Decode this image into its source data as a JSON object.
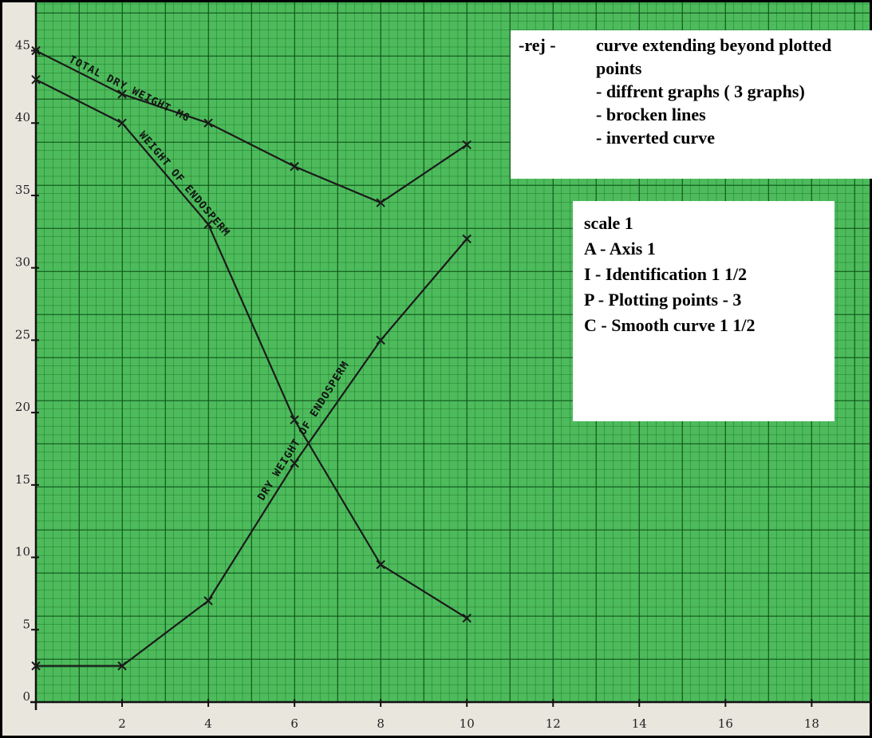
{
  "chart_data": {
    "type": "line",
    "x": [
      0,
      2,
      4,
      6,
      8,
      10
    ],
    "series": [
      {
        "name": "TOTAL DRY WEIGHT MG",
        "color": "#1a1a1a",
        "values": [
          45,
          42,
          40,
          37,
          34.5,
          38.5
        ]
      },
      {
        "name": "WEIGHT OF ENDOSPERM",
        "color": "#1a1a1a",
        "values": [
          43,
          40,
          33,
          19.5,
          9.5,
          5.8
        ]
      },
      {
        "name": "DRY WEIGHT OF ENDOSPERM",
        "color": "#1a1a1a",
        "values": [
          2.5,
          2.5,
          7,
          16.5,
          25,
          32
        ]
      }
    ],
    "xlim": [
      0,
      19.4
    ],
    "ylim": [
      0,
      48.5
    ],
    "xticks": [
      2,
      4,
      6,
      8,
      10,
      12,
      14,
      16,
      18
    ],
    "yticks": [
      0,
      5,
      10,
      15,
      20,
      25,
      30,
      35,
      40,
      45
    ],
    "grid": true,
    "rejection_label": "-rej -",
    "rejections": [
      "curve extending beyond plotted points",
      "-  diffrent graphs ( 3 graphs)",
      "-  brocken lines",
      "-  inverted curve"
    ],
    "marking_scheme": [
      "scale 1",
      "A - Axis 1",
      "I - Identification 1 1/2",
      "P - Plotting points - 3",
      "C - Smooth curve 1 1/2"
    ]
  }
}
